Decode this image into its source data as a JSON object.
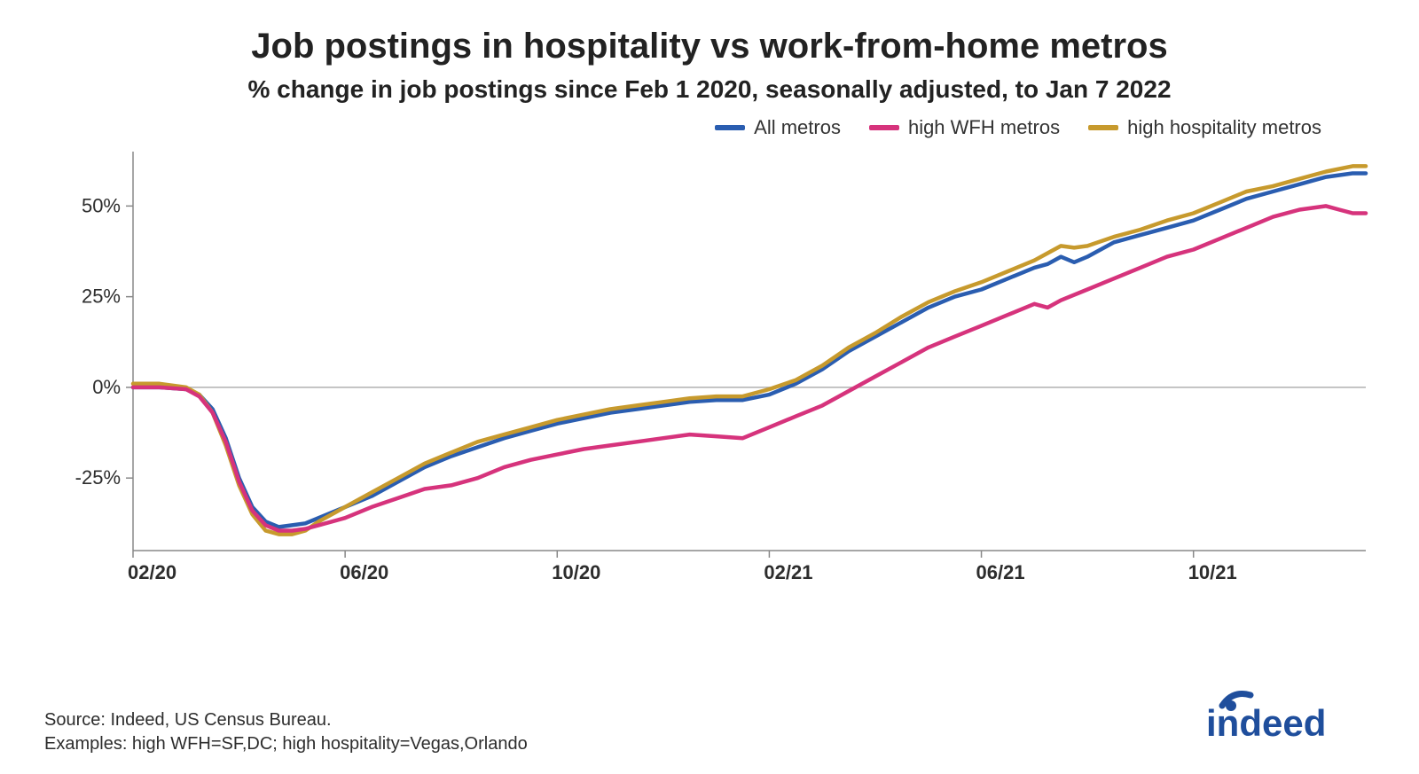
{
  "title": "Job postings in hospitality vs work-from-home metros",
  "subtitle": "% change in job postings since Feb 1 2020, seasonally adjusted, to Jan 7 2022",
  "legend": [
    {
      "label": "All metros",
      "color": "#2a5db0"
    },
    {
      "label": "high WFH metros",
      "color": "#d6337c"
    },
    {
      "label": "high hospitality metros",
      "color": "#c79a2d"
    }
  ],
  "chart": {
    "type": "line",
    "background_color": "#ffffff",
    "baseline_color": "#b0b0b0",
    "axis_color": "#888888",
    "line_width": 4.5,
    "title_fontsize": 40,
    "subtitle_fontsize": 28,
    "tick_fontsize": 22,
    "x": {
      "domain_min": 0,
      "domain_max": 23.25,
      "ticks": [
        {
          "pos": 0,
          "label": "02/20"
        },
        {
          "pos": 4,
          "label": "06/20"
        },
        {
          "pos": 8,
          "label": "10/20"
        },
        {
          "pos": 12,
          "label": "02/21"
        },
        {
          "pos": 16,
          "label": "06/21"
        },
        {
          "pos": 20,
          "label": "10/21"
        }
      ]
    },
    "y": {
      "domain_min": -45,
      "domain_max": 65,
      "ticks": [
        {
          "pos": 50,
          "label": "50%"
        },
        {
          "pos": 25,
          "label": "25%"
        },
        {
          "pos": 0,
          "label": "0%"
        },
        {
          "pos": -25,
          "label": "-25%"
        }
      ],
      "baseline": 0
    },
    "series": [
      {
        "name": "All metros",
        "color": "#2a5db0",
        "points": [
          [
            0,
            0
          ],
          [
            0.5,
            0
          ],
          [
            1,
            -0.5
          ],
          [
            1.25,
            -2
          ],
          [
            1.5,
            -6
          ],
          [
            1.75,
            -14
          ],
          [
            2,
            -25
          ],
          [
            2.25,
            -33
          ],
          [
            2.5,
            -37
          ],
          [
            2.75,
            -38.5
          ],
          [
            3,
            -38
          ],
          [
            3.25,
            -37.5
          ],
          [
            3.5,
            -36
          ],
          [
            4,
            -33
          ],
          [
            4.5,
            -30
          ],
          [
            5,
            -26
          ],
          [
            5.5,
            -22
          ],
          [
            6,
            -19
          ],
          [
            6.5,
            -16.5
          ],
          [
            7,
            -14
          ],
          [
            7.5,
            -12
          ],
          [
            8,
            -10
          ],
          [
            8.5,
            -8.5
          ],
          [
            9,
            -7
          ],
          [
            9.5,
            -6
          ],
          [
            10,
            -5
          ],
          [
            10.5,
            -4
          ],
          [
            11,
            -3.5
          ],
          [
            11.5,
            -3.5
          ],
          [
            12,
            -2
          ],
          [
            12.5,
            1
          ],
          [
            13,
            5
          ],
          [
            13.5,
            10
          ],
          [
            14,
            14
          ],
          [
            14.5,
            18
          ],
          [
            15,
            22
          ],
          [
            15.5,
            25
          ],
          [
            16,
            27
          ],
          [
            16.5,
            30
          ],
          [
            17,
            33
          ],
          [
            17.25,
            34
          ],
          [
            17.5,
            36
          ],
          [
            17.75,
            34.5
          ],
          [
            18,
            36
          ],
          [
            18.5,
            40
          ],
          [
            19,
            42
          ],
          [
            19.5,
            44
          ],
          [
            20,
            46
          ],
          [
            20.5,
            49
          ],
          [
            21,
            52
          ],
          [
            21.5,
            54
          ],
          [
            22,
            56
          ],
          [
            22.5,
            58
          ],
          [
            23,
            59
          ],
          [
            23.25,
            59
          ]
        ]
      },
      {
        "name": "high hospitality metros",
        "color": "#c79a2d",
        "points": [
          [
            0,
            1
          ],
          [
            0.5,
            1
          ],
          [
            1,
            0
          ],
          [
            1.25,
            -2
          ],
          [
            1.5,
            -7
          ],
          [
            1.75,
            -16
          ],
          [
            2,
            -27
          ],
          [
            2.25,
            -35
          ],
          [
            2.5,
            -39.5
          ],
          [
            2.75,
            -40.5
          ],
          [
            3,
            -40.5
          ],
          [
            3.25,
            -39.5
          ],
          [
            3.5,
            -37
          ],
          [
            4,
            -33
          ],
          [
            4.5,
            -29
          ],
          [
            5,
            -25
          ],
          [
            5.5,
            -21
          ],
          [
            6,
            -18
          ],
          [
            6.5,
            -15
          ],
          [
            7,
            -13
          ],
          [
            7.5,
            -11
          ],
          [
            8,
            -9
          ],
          [
            8.5,
            -7.5
          ],
          [
            9,
            -6
          ],
          [
            9.5,
            -5
          ],
          [
            10,
            -4
          ],
          [
            10.5,
            -3
          ],
          [
            11,
            -2.5
          ],
          [
            11.5,
            -2.5
          ],
          [
            12,
            -0.5
          ],
          [
            12.5,
            2
          ],
          [
            13,
            6
          ],
          [
            13.5,
            11
          ],
          [
            14,
            15
          ],
          [
            14.5,
            19.5
          ],
          [
            15,
            23.5
          ],
          [
            15.5,
            26.5
          ],
          [
            16,
            29
          ],
          [
            16.5,
            32
          ],
          [
            17,
            35
          ],
          [
            17.25,
            37
          ],
          [
            17.5,
            39
          ],
          [
            17.75,
            38.5
          ],
          [
            18,
            39
          ],
          [
            18.5,
            41.5
          ],
          [
            19,
            43.5
          ],
          [
            19.5,
            46
          ],
          [
            20,
            48
          ],
          [
            20.5,
            51
          ],
          [
            21,
            54
          ],
          [
            21.5,
            55.5
          ],
          [
            22,
            57.5
          ],
          [
            22.5,
            59.5
          ],
          [
            23,
            61
          ],
          [
            23.25,
            61
          ]
        ]
      },
      {
        "name": "high WFH metros",
        "color": "#d6337c",
        "points": [
          [
            0,
            0
          ],
          [
            0.5,
            0
          ],
          [
            1,
            -0.5
          ],
          [
            1.25,
            -2.5
          ],
          [
            1.5,
            -7
          ],
          [
            1.75,
            -15
          ],
          [
            2,
            -26
          ],
          [
            2.25,
            -34
          ],
          [
            2.5,
            -38
          ],
          [
            2.75,
            -39.5
          ],
          [
            3,
            -39.5
          ],
          [
            3.25,
            -39
          ],
          [
            3.5,
            -38
          ],
          [
            4,
            -36
          ],
          [
            4.5,
            -33
          ],
          [
            5,
            -30.5
          ],
          [
            5.5,
            -28
          ],
          [
            6,
            -27
          ],
          [
            6.5,
            -25
          ],
          [
            7,
            -22
          ],
          [
            7.5,
            -20
          ],
          [
            8,
            -18.5
          ],
          [
            8.5,
            -17
          ],
          [
            9,
            -16
          ],
          [
            9.5,
            -15
          ],
          [
            10,
            -14
          ],
          [
            10.5,
            -13
          ],
          [
            11,
            -13.5
          ],
          [
            11.5,
            -14
          ],
          [
            12,
            -11
          ],
          [
            12.5,
            -8
          ],
          [
            13,
            -5
          ],
          [
            13.5,
            -1
          ],
          [
            14,
            3
          ],
          [
            14.5,
            7
          ],
          [
            15,
            11
          ],
          [
            15.5,
            14
          ],
          [
            16,
            17
          ],
          [
            16.5,
            20
          ],
          [
            17,
            23
          ],
          [
            17.25,
            22
          ],
          [
            17.5,
            24
          ],
          [
            18,
            27
          ],
          [
            18.5,
            30
          ],
          [
            19,
            33
          ],
          [
            19.5,
            36
          ],
          [
            20,
            38
          ],
          [
            20.5,
            41
          ],
          [
            21,
            44
          ],
          [
            21.5,
            47
          ],
          [
            22,
            49
          ],
          [
            22.5,
            50
          ],
          [
            22.75,
            49
          ],
          [
            23,
            48
          ],
          [
            23.25,
            48
          ]
        ]
      }
    ]
  },
  "footnotes": {
    "line1": "Source: Indeed, US Census Bureau.",
    "line2": "Examples: high WFH=SF,DC; high hospitality=Vegas,Orlando"
  },
  "logo": {
    "name": "indeed",
    "text_color": "#1f4e9c",
    "arc_color": "#1f4e9c",
    "dot_color": "#1f4e9c"
  }
}
